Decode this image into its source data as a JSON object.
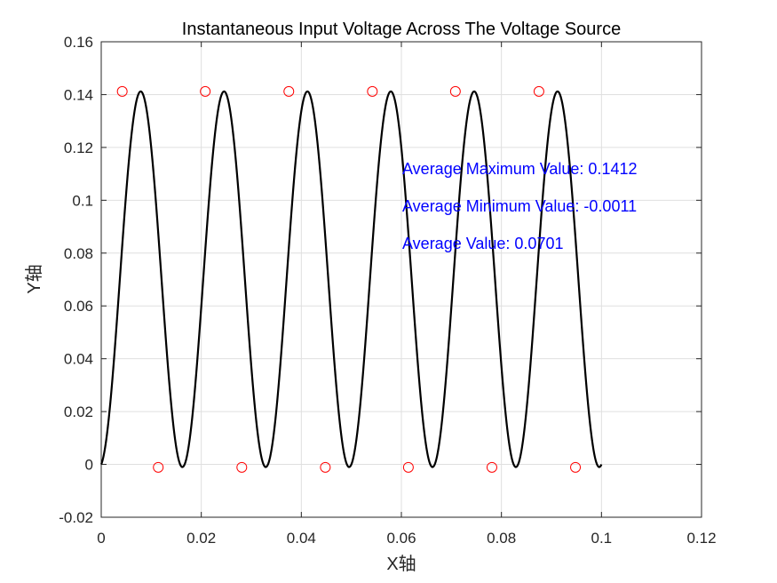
{
  "chart_data": {
    "type": "line",
    "title": "Instantaneous Input Voltage Across The Voltage Source",
    "xlabel": "X轴",
    "ylabel": "Y轴",
    "xlim": [
      0,
      0.12
    ],
    "ylim": [
      -0.02,
      0.16
    ],
    "x_ticks": [
      "0",
      "0.02",
      "0.04",
      "0.06",
      "0.08",
      "0.1",
      "0.12"
    ],
    "y_ticks": [
      "-0.02",
      "0",
      "0.02",
      "0.04",
      "0.06",
      "0.08",
      "0.1",
      "0.12",
      "0.14",
      "0.16"
    ],
    "grid": true,
    "line_color": "#000000",
    "marker_color": "#ff0000",
    "annotation_color": "#0000ff",
    "signal": {
      "x_start": 0,
      "x_end": 0.1,
      "frequency_hz": 60,
      "offset": 0.0701,
      "amplitude": 0.0711
    },
    "maxima": {
      "x": [
        0.0042,
        0.0208,
        0.0375,
        0.0542,
        0.0708,
        0.0875
      ],
      "y": [
        0.1412,
        0.1412,
        0.1412,
        0.1412,
        0.1412,
        0.1412
      ]
    },
    "minima": {
      "x": [
        0.0114,
        0.0281,
        0.0448,
        0.0614,
        0.0781,
        0.0948
      ],
      "y": [
        -0.0011,
        -0.0011,
        -0.0011,
        -0.0011,
        -0.0011,
        -0.0011
      ]
    },
    "annotations": [
      "Average Maximum Value: 0.1412",
      "Average Minimum Value: -0.0011",
      "Average Value: 0.0701"
    ]
  }
}
